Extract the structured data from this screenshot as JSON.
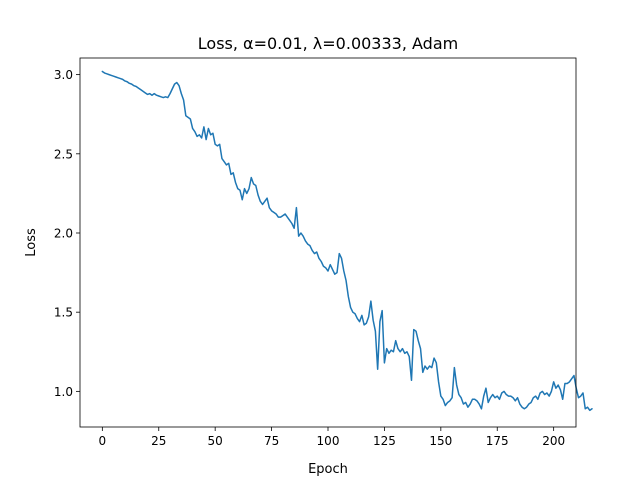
{
  "chart_data": {
    "type": "line",
    "title": "Loss, α=0.01, λ=0.00333, Adam",
    "xlabel": "Epoch",
    "ylabel": "Loss",
    "xlim": [
      -9.9,
      209.9
    ],
    "ylim": [
      0.775,
      3.105
    ],
    "xticks": [
      0,
      25,
      50,
      75,
      100,
      125,
      150,
      175,
      200
    ],
    "yticks": [
      1.0,
      1.5,
      2.0,
      2.5,
      3.0
    ],
    "xtick_labels": [
      "0",
      "25",
      "50",
      "75",
      "100",
      "125",
      "150",
      "175",
      "200"
    ],
    "ytick_labels": [
      "1.0",
      "1.5",
      "2.0",
      "2.5",
      "3.0"
    ],
    "grid": false,
    "colors": {
      "series": "#1f77b4"
    },
    "series": [
      {
        "values": [
          3.02,
          3.01,
          3.005,
          3.0,
          2.995,
          2.99,
          2.985,
          2.98,
          2.975,
          2.97,
          2.96,
          2.955,
          2.945,
          2.94,
          2.93,
          2.925,
          2.915,
          2.905,
          2.895,
          2.885,
          2.875,
          2.88,
          2.87,
          2.88,
          2.87,
          2.865,
          2.86,
          2.855,
          2.86,
          2.855,
          2.88,
          2.91,
          2.94,
          2.95,
          2.93,
          2.88,
          2.84,
          2.74,
          2.73,
          2.72,
          2.66,
          2.64,
          2.61,
          2.62,
          2.6,
          2.67,
          2.59,
          2.66,
          2.62,
          2.63,
          2.56,
          2.55,
          2.56,
          2.47,
          2.45,
          2.43,
          2.44,
          2.37,
          2.38,
          2.32,
          2.28,
          2.27,
          2.21,
          2.28,
          2.25,
          2.28,
          2.35,
          2.31,
          2.3,
          2.24,
          2.2,
          2.18,
          2.2,
          2.22,
          2.16,
          2.14,
          2.13,
          2.12,
          2.1,
          2.1,
          2.11,
          2.12,
          2.1,
          2.08,
          2.06,
          2.03,
          2.16,
          1.98,
          2.0,
          1.98,
          1.95,
          1.93,
          1.92,
          1.89,
          1.87,
          1.88,
          1.84,
          1.82,
          1.79,
          1.78,
          1.76,
          1.8,
          1.77,
          1.74,
          1.75,
          1.87,
          1.84,
          1.76,
          1.7,
          1.6,
          1.53,
          1.5,
          1.49,
          1.46,
          1.44,
          1.48,
          1.42,
          1.43,
          1.47,
          1.57,
          1.45,
          1.38,
          1.14,
          1.44,
          1.51,
          1.18,
          1.27,
          1.24,
          1.26,
          1.25,
          1.32,
          1.27,
          1.25,
          1.27,
          1.24,
          1.25,
          1.22,
          1.07,
          1.39,
          1.38,
          1.32,
          1.27,
          1.12,
          1.16,
          1.14,
          1.16,
          1.15,
          1.21,
          1.18,
          1.06,
          0.97,
          0.95,
          0.91,
          0.93,
          0.94,
          0.96,
          1.15,
          1.04,
          0.98,
          0.96,
          0.92,
          0.93,
          0.9,
          0.92,
          0.95,
          0.95,
          0.94,
          0.92,
          0.89,
          0.97,
          1.02,
          0.93,
          0.96,
          0.98,
          0.96,
          0.97,
          0.95,
          0.99,
          1.0,
          0.98,
          0.97,
          0.97,
          0.96,
          0.94,
          0.96,
          0.92,
          0.9,
          0.89,
          0.9,
          0.92,
          0.93,
          0.96,
          0.97,
          0.95,
          0.99,
          1.0,
          0.98,
          0.99,
          0.97,
          1.0,
          1.06,
          1.02,
          1.04,
          1.01,
          0.95,
          1.05,
          1.05,
          1.06,
          1.08,
          1.1,
          1.02,
          0.96,
          0.97,
          0.99,
          0.89,
          0.9,
          0.88,
          0.89
        ]
      }
    ]
  }
}
